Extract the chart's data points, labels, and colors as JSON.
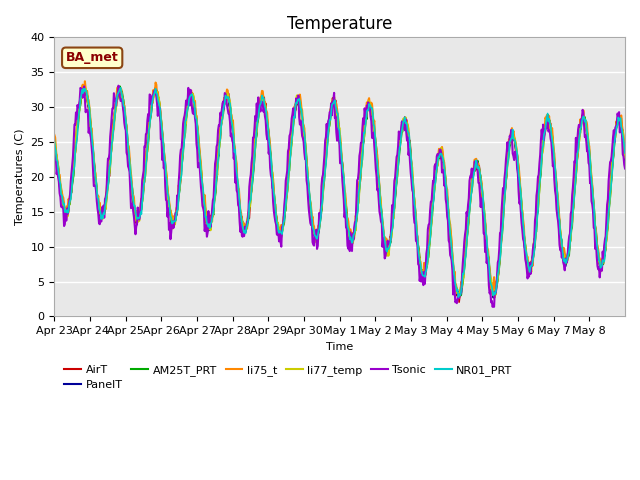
{
  "title": "Temperature",
  "ylabel": "Temperatures (C)",
  "xlabel": "Time",
  "annotation": "BA_met",
  "ylim": [
    0,
    40
  ],
  "background_color": "#e8e8e8",
  "fig_bg_color": "#ffffff",
  "grid_color": "#ffffff",
  "series": {
    "AirT": {
      "color": "#cc0000",
      "lw": 1.2
    },
    "PanelT": {
      "color": "#000099",
      "lw": 1.2
    },
    "AM25T_PRT": {
      "color": "#00aa00",
      "lw": 1.2
    },
    "li75_t": {
      "color": "#ff8800",
      "lw": 1.5
    },
    "li77_temp": {
      "color": "#cccc00",
      "lw": 1.5
    },
    "Tsonic": {
      "color": "#9900cc",
      "lw": 1.5
    },
    "NR01_PRT": {
      "color": "#00cccc",
      "lw": 1.2
    }
  },
  "xtick_labels": [
    "Apr 23",
    "Apr 24",
    "Apr 25",
    "Apr 26",
    "Apr 27",
    "Apr 28",
    "Apr 29",
    "Apr 30",
    "May 1",
    "May 2",
    "May 3",
    "May 4",
    "May 5",
    "May 6",
    "May 7",
    "May 8"
  ],
  "ytick_values": [
    0,
    5,
    10,
    15,
    20,
    25,
    30,
    35,
    40
  ],
  "title_fontsize": 12,
  "legend_fontsize": 8,
  "tick_fontsize": 8
}
